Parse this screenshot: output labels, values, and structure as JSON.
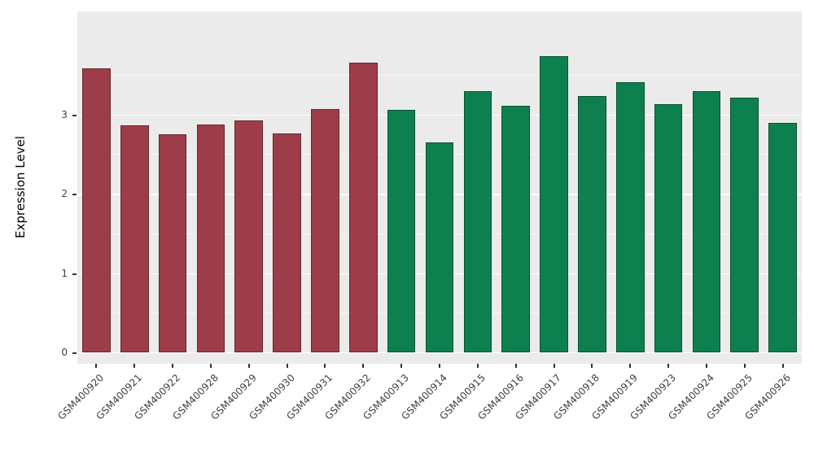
{
  "chart_data": {
    "type": "bar",
    "title": "",
    "xlabel": "",
    "ylabel": "Expression Level",
    "ylim": [
      0,
      4.3
    ],
    "yticks": [
      0,
      1,
      2,
      3
    ],
    "yticks_minor": [
      0.5,
      1.5,
      2.5,
      3.5
    ],
    "grid": true,
    "legend_position": "none",
    "categories": [
      "GSM400920",
      "GSM400921",
      "GSM400922",
      "GSM400928",
      "GSM400929",
      "GSM400930",
      "GSM400931",
      "GSM400932",
      "GSM400913",
      "GSM400914",
      "GSM400915",
      "GSM400916",
      "GSM400917",
      "GSM400918",
      "GSM400919",
      "GSM400923",
      "GSM400924",
      "GSM400925",
      "GSM400926"
    ],
    "values": [
      3.58,
      2.86,
      2.75,
      2.87,
      2.92,
      2.76,
      3.07,
      3.65,
      3.06,
      2.65,
      3.29,
      3.11,
      3.74,
      3.23,
      3.41,
      3.13,
      3.29,
      3.21,
      2.89
    ],
    "groups": [
      "A",
      "A",
      "A",
      "A",
      "A",
      "A",
      "A",
      "A",
      "B",
      "B",
      "B",
      "B",
      "B",
      "B",
      "B",
      "B",
      "B",
      "B",
      "B"
    ],
    "group_colors": {
      "A": "#9E3D4A",
      "B": "#0E8050"
    },
    "panel_background": "#EBEBEB",
    "grid_major_color": "#FFFFFF",
    "grid_minor_color": "#FFFFFF",
    "axis_text_color": "#404040"
  }
}
